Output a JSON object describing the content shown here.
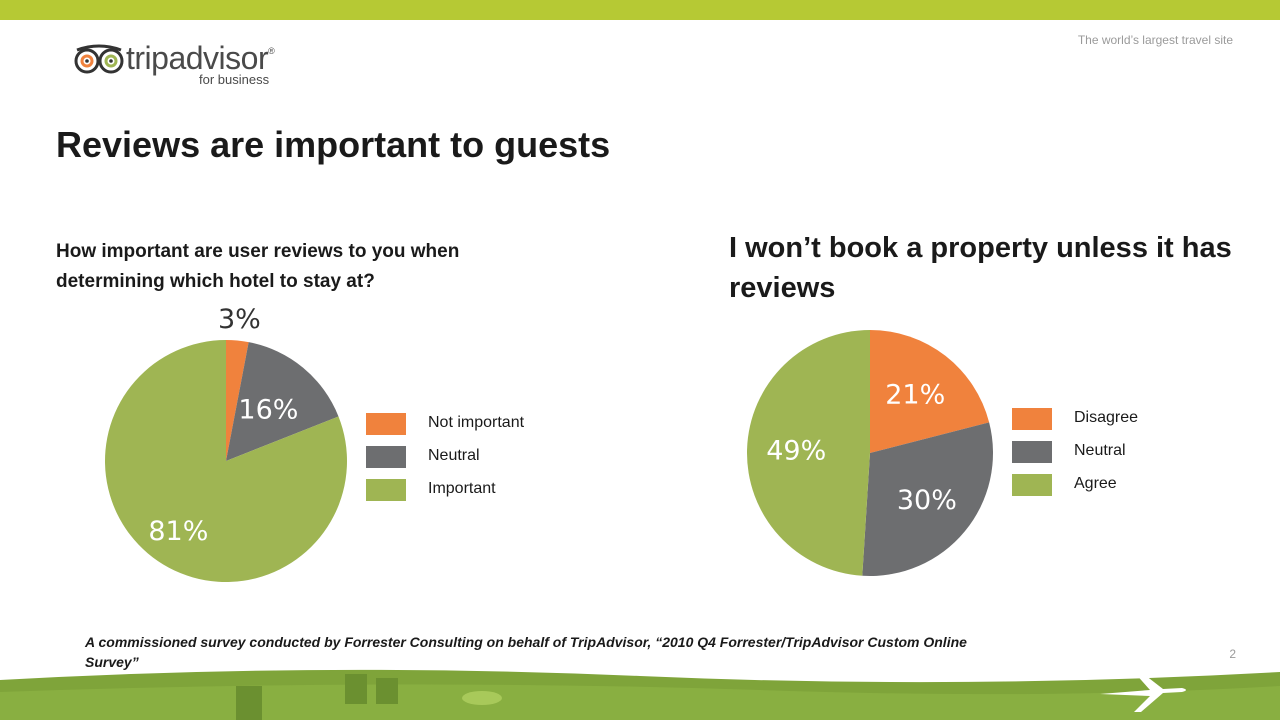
{
  "header": {
    "tagline": "The world’s largest travel site",
    "logo": {
      "wordmark": "tripadvisor",
      "registered": "®",
      "sub": "for business"
    }
  },
  "title": "Reviews are important to guests",
  "colors": {
    "orange": "#f0823d",
    "gray": "#6d6e70",
    "green": "#9fb553",
    "top_bar": "#b6c934",
    "landscape": "#7fa43a"
  },
  "chart_data": [
    {
      "type": "pie",
      "title": "How important are user reviews to you when determining which hotel to stay at?",
      "slices": [
        {
          "label": "Not important",
          "value": 3,
          "text": "3%",
          "color": "#f0823d"
        },
        {
          "label": "Neutral",
          "value": 16,
          "text": "16%",
          "color": "#6d6e70"
        },
        {
          "label": "Important",
          "value": 81,
          "text": "81%",
          "color": "#9fb553"
        }
      ],
      "legend_position": "right"
    },
    {
      "type": "pie",
      "title": "I won’t book a property unless it has reviews",
      "slices": [
        {
          "label": "Disagree",
          "value": 21,
          "text": "21%",
          "color": "#f0823d"
        },
        {
          "label": "Neutral",
          "value": 30,
          "text": "30%",
          "color": "#6d6e70"
        },
        {
          "label": "Agree",
          "value": 49,
          "text": "49%",
          "color": "#9fb553"
        }
      ],
      "legend_position": "right"
    }
  ],
  "footnote": "A commissioned survey conducted by Forrester Consulting on behalf of TripAdvisor, “2010 Q4 Forrester/TripAdvisor Custom Online Survey”",
  "page_number": "2"
}
